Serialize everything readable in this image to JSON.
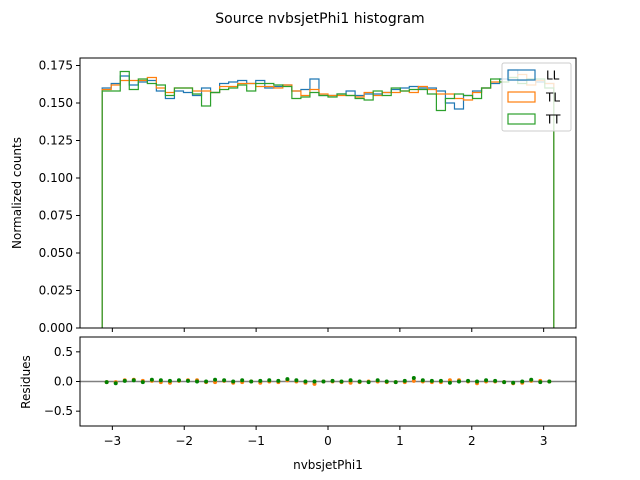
{
  "figure": {
    "title": "Source nvbsjetPhi1 histogram"
  },
  "chart_data": [
    {
      "type": "histogram",
      "title": "",
      "xlabel": "",
      "ylabel": "Normalized counts",
      "xlim": [
        -3.45,
        3.45
      ],
      "ylim": [
        0.0,
        0.18
      ],
      "yticks": [
        0.0,
        0.025,
        0.05,
        0.075,
        0.1,
        0.125,
        0.15,
        0.175
      ],
      "ytick_labels": [
        "0.000",
        "0.025",
        "0.050",
        "0.075",
        "0.100",
        "0.125",
        "0.150",
        "0.175"
      ],
      "bin_range": [
        -3.1416,
        3.1416
      ],
      "n_bins": 50,
      "grid": false,
      "legend_position": "top-right",
      "series": [
        {
          "name": "LL",
          "color": "#1f77b4",
          "values": [
            0.16,
            0.163,
            0.168,
            0.162,
            0.164,
            0.165,
            0.158,
            0.153,
            0.158,
            0.157,
            0.155,
            0.16,
            0.157,
            0.163,
            0.164,
            0.165,
            0.163,
            0.165,
            0.16,
            0.161,
            0.162,
            0.158,
            0.159,
            0.166,
            0.155,
            0.155,
            0.156,
            0.158,
            0.155,
            0.156,
            0.156,
            0.157,
            0.159,
            0.16,
            0.161,
            0.16,
            0.16,
            0.158,
            0.15,
            0.146,
            0.155,
            0.158,
            0.16,
            0.163,
            0.166,
            0.172,
            0.165,
            0.166,
            0.164,
            0.163
          ]
        },
        {
          "name": "TL",
          "color": "#ff7f0e",
          "values": [
            0.159,
            0.162,
            0.165,
            0.165,
            0.165,
            0.167,
            0.16,
            0.157,
            0.16,
            0.16,
            0.158,
            0.158,
            0.157,
            0.161,
            0.161,
            0.163,
            0.163,
            0.161,
            0.161,
            0.16,
            0.162,
            0.158,
            0.155,
            0.159,
            0.156,
            0.155,
            0.155,
            0.155,
            0.154,
            0.157,
            0.155,
            0.157,
            0.157,
            0.158,
            0.157,
            0.161,
            0.159,
            0.156,
            0.156,
            0.153,
            0.152,
            0.157,
            0.16,
            0.164,
            0.164,
            0.167,
            0.169,
            0.162,
            0.165,
            0.163
          ]
        },
        {
          "name": "TT",
          "color": "#2ca02c",
          "values": [
            0.158,
            0.158,
            0.171,
            0.159,
            0.166,
            0.163,
            0.162,
            0.155,
            0.16,
            0.16,
            0.156,
            0.148,
            0.157,
            0.159,
            0.16,
            0.162,
            0.158,
            0.163,
            0.163,
            0.162,
            0.161,
            0.153,
            0.154,
            0.157,
            0.155,
            0.154,
            0.156,
            0.155,
            0.153,
            0.152,
            0.158,
            0.155,
            0.16,
            0.158,
            0.159,
            0.159,
            0.156,
            0.145,
            0.153,
            0.156,
            0.155,
            0.153,
            0.16,
            0.166,
            0.164,
            0.167,
            0.163,
            0.166,
            0.166,
            0.16
          ]
        }
      ]
    },
    {
      "type": "scatter",
      "title": "",
      "xlabel": "nvbsjetPhi1",
      "ylabel": "Residues",
      "xlim": [
        -3.45,
        3.45
      ],
      "ylim": [
        -0.75,
        0.75
      ],
      "xticks": [
        -3,
        -2,
        -1,
        0,
        1,
        2,
        3
      ],
      "xtick_labels": [
        "−3",
        "−2",
        "−1",
        "0",
        "1",
        "2",
        "3"
      ],
      "yticks": [
        -0.5,
        0.0,
        0.5
      ],
      "ytick_labels": [
        "−0.5",
        "0.0",
        "0.5"
      ],
      "reference_line": 0.0,
      "grid": false,
      "series": [
        {
          "color": "#ff7f0e",
          "x": [
            -3.079,
            -2.953,
            -2.827,
            -2.702,
            -2.576,
            -2.45,
            -2.325,
            -2.199,
            -2.073,
            -1.948,
            -1.822,
            -1.696,
            -1.571,
            -1.445,
            -1.319,
            -1.194,
            -1.068,
            -0.942,
            -0.817,
            -0.691,
            -0.565,
            -0.44,
            -0.314,
            -0.188,
            -0.063,
            0.063,
            0.188,
            0.314,
            0.44,
            0.565,
            0.691,
            0.817,
            0.942,
            1.068,
            1.194,
            1.319,
            1.445,
            1.571,
            1.696,
            1.822,
            1.948,
            2.073,
            2.199,
            2.325,
            2.45,
            2.576,
            2.702,
            2.827,
            2.953,
            3.079
          ],
          "y": [
            -0.01,
            -0.01,
            0.02,
            0.03,
            0.01,
            0.01,
            -0.01,
            -0.02,
            0.01,
            0.02,
            0.02,
            -0.01,
            -0.01,
            0.01,
            -0.02,
            -0.01,
            0.0,
            -0.02,
            0.0,
            -0.01,
            0.02,
            0.0,
            -0.02,
            -0.04,
            0.0,
            0.0,
            -0.01,
            -0.02,
            -0.01,
            0.0,
            0.0,
            -0.01,
            -0.01,
            -0.01,
            0.01,
            0.0,
            -0.01,
            -0.01,
            0.02,
            0.02,
            0.0,
            -0.03,
            0.0,
            0.0,
            -0.01,
            -0.03,
            -0.02,
            0.01,
            0.01,
            0.0
          ]
        },
        {
          "color": "#008000",
          "x": [
            -3.079,
            -2.953,
            -2.827,
            -2.702,
            -2.576,
            -2.45,
            -2.325,
            -2.199,
            -2.073,
            -1.948,
            -1.822,
            -1.696,
            -1.571,
            -1.445,
            -1.319,
            -1.194,
            -1.068,
            -0.942,
            -0.817,
            -0.691,
            -0.565,
            -0.44,
            -0.314,
            -0.188,
            -0.063,
            0.063,
            0.188,
            0.314,
            0.44,
            0.565,
            0.691,
            0.817,
            0.942,
            1.068,
            1.194,
            1.319,
            1.445,
            1.571,
            1.696,
            1.822,
            1.948,
            2.073,
            2.199,
            2.325,
            2.45,
            2.576,
            2.702,
            2.827,
            2.953,
            3.079
          ],
          "y": [
            -0.01,
            -0.03,
            0.01,
            0.02,
            -0.01,
            0.03,
            0.02,
            0.01,
            0.02,
            0.01,
            0.0,
            0.0,
            0.03,
            0.02,
            0.0,
            0.02,
            0.0,
            0.01,
            0.02,
            0.01,
            0.04,
            0.02,
            0.0,
            0.0,
            0.0,
            0.01,
            0.0,
            0.02,
            0.0,
            -0.01,
            0.02,
            0.0,
            -0.01,
            0.01,
            0.06,
            0.02,
            0.01,
            0.01,
            -0.02,
            0.0,
            0.01,
            0.0,
            0.02,
            0.01,
            -0.01,
            -0.02,
            0.0,
            0.03,
            -0.01,
            0.0
          ]
        }
      ]
    }
  ]
}
